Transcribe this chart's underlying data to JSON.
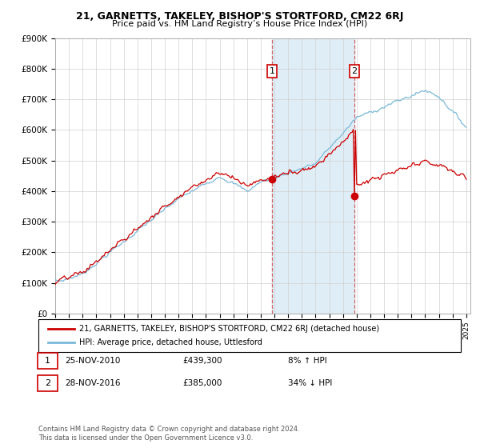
{
  "title": "21, GARNETTS, TAKELEY, BISHOP'S STORTFORD, CM22 6RJ",
  "subtitle": "Price paid vs. HM Land Registry’s House Price Index (HPI)",
  "ylabel_ticks": [
    "£0",
    "£100K",
    "£200K",
    "£300K",
    "£400K",
    "£500K",
    "£600K",
    "£700K",
    "£800K",
    "£900K"
  ],
  "ylim": [
    0,
    900000
  ],
  "yticks": [
    0,
    100000,
    200000,
    300000,
    400000,
    500000,
    600000,
    700000,
    800000,
    900000
  ],
  "hpi_color": "#7ab8d8",
  "price_color": "#cc0000",
  "shade_color": "#daeaf5",
  "legend_house": "21, GARNETTS, TAKELEY, BISHOP'S STORTFORD, CM22 6RJ (detached house)",
  "legend_hpi": "HPI: Average price, detached house, Uttlesford",
  "note1_box": "1",
  "note1_date": "25-NOV-2010",
  "note1_price": "£439,300",
  "note1_hpi": "8% ↑ HPI",
  "note2_box": "2",
  "note2_date": "28-NOV-2016",
  "note2_price": "£385,000",
  "note2_hpi": "34% ↓ HPI",
  "footer": "Contains HM Land Registry data © Crown copyright and database right 2024.\nThis data is licensed under the Open Government Licence v3.0.",
  "x_start_year": 1995,
  "x_end_year": 2025
}
